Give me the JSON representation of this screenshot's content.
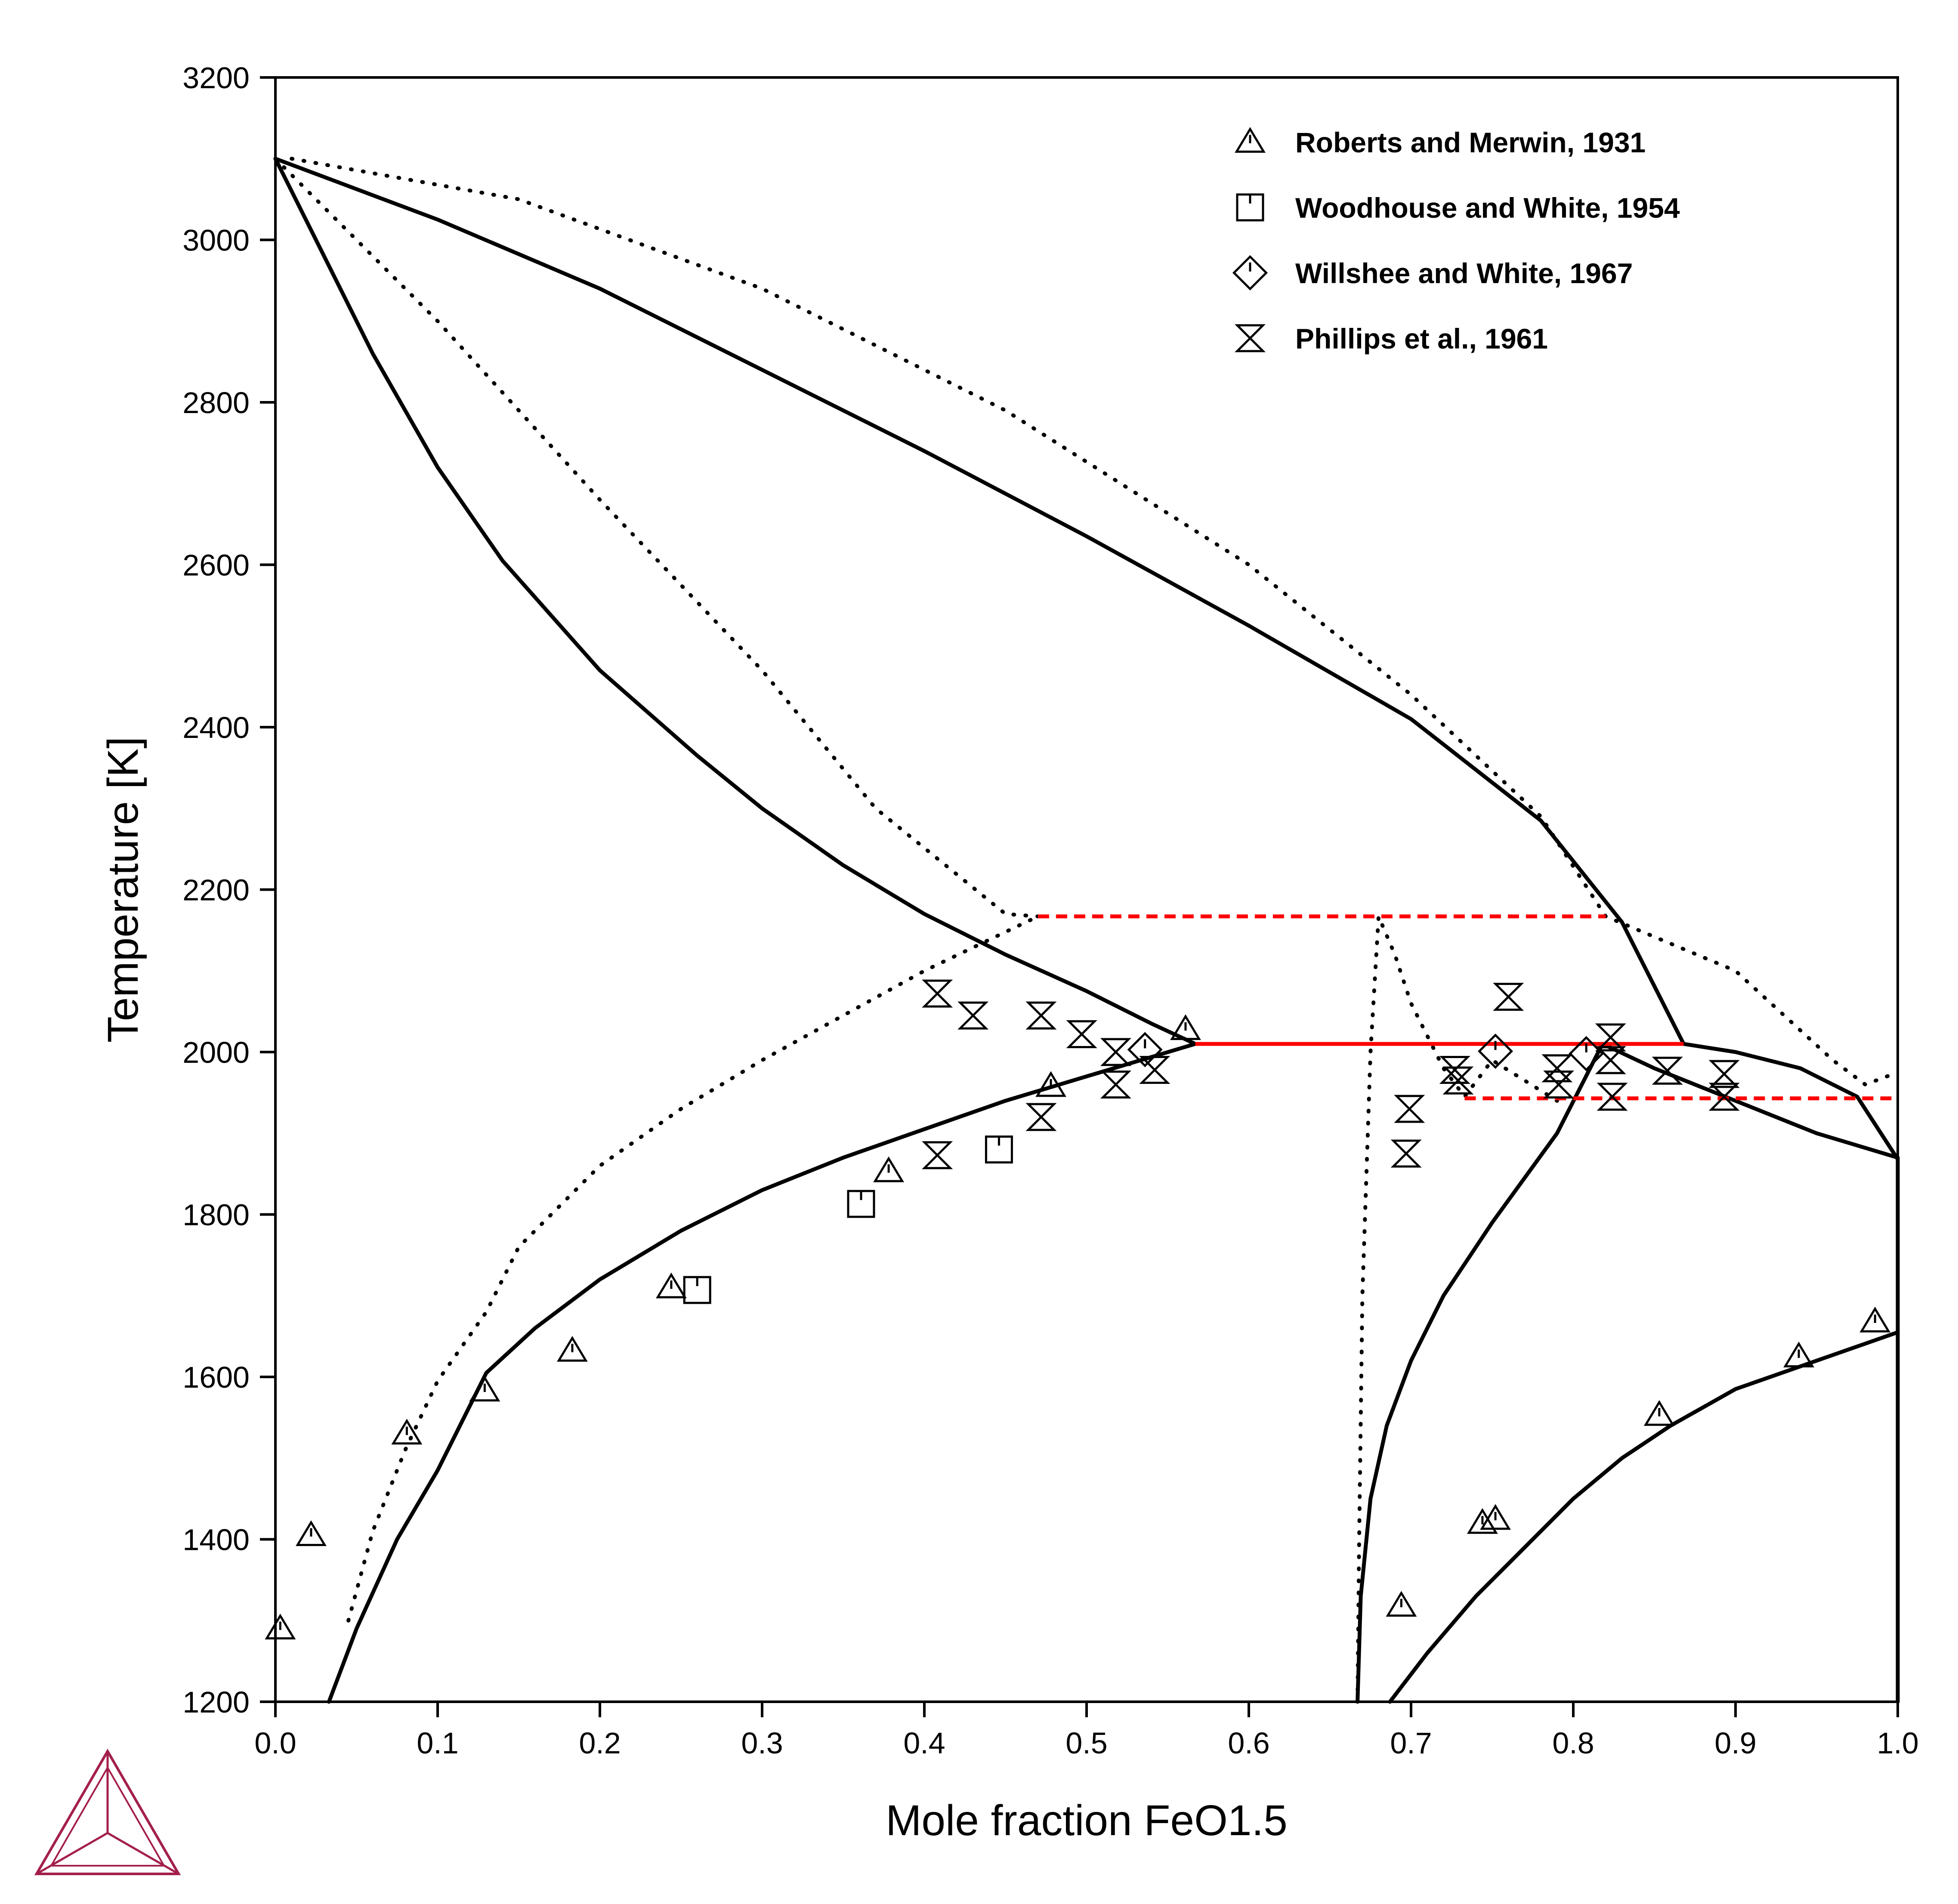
{
  "chart_data": {
    "type": "scatter",
    "xlabel": "Mole fraction FeO1.5",
    "ylabel": "Temperature [K]",
    "xlim": [
      0.0,
      1.0
    ],
    "ylim": [
      1200,
      3200
    ],
    "x_ticks": [
      "0.0",
      "0.1",
      "0.2",
      "0.3",
      "0.4",
      "0.5",
      "0.6",
      "0.7",
      "0.8",
      "0.9",
      "1.0"
    ],
    "y_ticks": [
      "1200",
      "1400",
      "1600",
      "1800",
      "2000",
      "2200",
      "2400",
      "2600",
      "2800",
      "3000",
      "3200"
    ],
    "legend_position": "top-right",
    "colors": {
      "calculated": "#000000",
      "invariant": "#ff0000",
      "logo": "#a31f4b"
    },
    "series": [
      {
        "name": "Roberts and Merwin, 1931",
        "marker": "triangle-tick",
        "points": [
          [
            0.003,
            1290
          ],
          [
            0.022,
            1405
          ],
          [
            0.081,
            1530
          ],
          [
            0.129,
            1583
          ],
          [
            0.183,
            1632
          ],
          [
            0.244,
            1710
          ],
          [
            0.378,
            1853
          ],
          [
            0.478,
            1958
          ],
          [
            0.561,
            2028
          ],
          [
            0.694,
            1318
          ],
          [
            0.744,
            1420
          ],
          [
            0.752,
            1425
          ],
          [
            0.853,
            1553
          ],
          [
            0.939,
            1625
          ],
          [
            0.986,
            1668
          ]
        ]
      },
      {
        "name": "Woodhouse and White, 1954",
        "marker": "square-tick",
        "points": [
          [
            0.26,
            1707
          ],
          [
            0.361,
            1813
          ],
          [
            0.446,
            1880
          ]
        ]
      },
      {
        "name": "Willshee and White, 1967",
        "marker": "diamond-tick",
        "points": [
          [
            0.536,
            2003
          ],
          [
            0.752,
            2001
          ],
          [
            0.808,
            1998
          ]
        ]
      },
      {
        "name": "Phillips et al., 1961",
        "marker": "hourglass",
        "points": [
          [
            0.408,
            2072
          ],
          [
            0.43,
            2045
          ],
          [
            0.472,
            2045
          ],
          [
            0.497,
            2022
          ],
          [
            0.518,
            2000
          ],
          [
            0.542,
            1978
          ],
          [
            0.518,
            1960
          ],
          [
            0.472,
            1920
          ],
          [
            0.408,
            1873
          ],
          [
            0.727,
            1978
          ],
          [
            0.729,
            1965
          ],
          [
            0.76,
            2068
          ],
          [
            0.79,
            1980
          ],
          [
            0.791,
            1960
          ],
          [
            0.823,
            2018
          ],
          [
            0.823,
            1990
          ],
          [
            0.824,
            1945
          ],
          [
            0.858,
            1977
          ],
          [
            0.893,
            1973
          ],
          [
            0.893,
            1945
          ],
          [
            0.699,
            1930
          ],
          [
            0.697,
            1875
          ]
        ]
      }
    ],
    "calculated_solid_curves": [
      [
        [
          0.0,
          3100
        ],
        [
          0.03,
          2980
        ],
        [
          0.06,
          2860
        ],
        [
          0.1,
          2720
        ],
        [
          0.14,
          2605
        ],
        [
          0.2,
          2470
        ],
        [
          0.26,
          2365
        ],
        [
          0.3,
          2300
        ],
        [
          0.35,
          2230
        ],
        [
          0.4,
          2170
        ],
        [
          0.45,
          2120
        ],
        [
          0.5,
          2075
        ],
        [
          0.54,
          2035
        ],
        [
          0.567,
          2010
        ]
      ],
      [
        [
          0.0,
          3100
        ],
        [
          0.1,
          3025
        ],
        [
          0.2,
          2940
        ],
        [
          0.3,
          2840
        ],
        [
          0.4,
          2740
        ],
        [
          0.5,
          2635
        ],
        [
          0.6,
          2525
        ],
        [
          0.7,
          2410
        ],
        [
          0.78,
          2285
        ],
        [
          0.83,
          2160
        ],
        [
          0.868,
          2010
        ],
        [
          0.9,
          2000
        ],
        [
          0.94,
          1980
        ],
        [
          0.975,
          1945
        ],
        [
          1.0,
          1868
        ]
      ],
      [
        [
          0.033,
          1200
        ],
        [
          0.05,
          1290
        ],
        [
          0.075,
          1400
        ],
        [
          0.1,
          1485
        ],
        [
          0.13,
          1605
        ],
        [
          0.16,
          1660
        ],
        [
          0.2,
          1720
        ],
        [
          0.25,
          1780
        ],
        [
          0.3,
          1830
        ],
        [
          0.35,
          1870
        ],
        [
          0.4,
          1905
        ],
        [
          0.45,
          1940
        ],
        [
          0.5,
          1970
        ],
        [
          0.567,
          2010
        ]
      ],
      [
        [
          0.667,
          1200
        ],
        [
          0.669,
          1330
        ],
        [
          0.675,
          1450
        ],
        [
          0.685,
          1540
        ],
        [
          0.7,
          1620
        ],
        [
          0.72,
          1700
        ],
        [
          0.75,
          1790
        ],
        [
          0.79,
          1900
        ],
        [
          0.818,
          2010
        ],
        [
          0.85,
          1980
        ],
        [
          0.9,
          1940
        ],
        [
          0.95,
          1900
        ],
        [
          1.0,
          1870
        ]
      ],
      [
        [
          0.687,
          1200
        ],
        [
          0.71,
          1260
        ],
        [
          0.74,
          1330
        ],
        [
          0.77,
          1390
        ],
        [
          0.8,
          1450
        ],
        [
          0.83,
          1500
        ],
        [
          0.86,
          1540
        ],
        [
          0.9,
          1585
        ],
        [
          0.95,
          1620
        ],
        [
          1.0,
          1655
        ]
      ],
      [
        [
          1.0,
          1200
        ],
        [
          1.0,
          1870
        ]
      ]
    ],
    "calculated_dotted_curves": [
      [
        [
          0.0,
          3100
        ],
        [
          0.1,
          2900
        ],
        [
          0.2,
          2680
        ],
        [
          0.3,
          2470
        ],
        [
          0.37,
          2300
        ],
        [
          0.45,
          2170
        ],
        [
          0.47,
          2167
        ]
      ],
      [
        [
          0.01,
          3100
        ],
        [
          0.15,
          3050
        ],
        [
          0.3,
          2940
        ],
        [
          0.45,
          2790
        ],
        [
          0.6,
          2600
        ],
        [
          0.7,
          2440
        ],
        [
          0.78,
          2290
        ],
        [
          0.82,
          2167
        ],
        [
          0.9,
          2100
        ],
        [
          0.96,
          1990
        ],
        [
          0.98,
          1960
        ],
        [
          1.0,
          1975
        ]
      ],
      [
        [
          0.045,
          1300
        ],
        [
          0.06,
          1410
        ],
        [
          0.08,
          1510
        ],
        [
          0.1,
          1595
        ],
        [
          0.13,
          1680
        ],
        [
          0.15,
          1760
        ],
        [
          0.2,
          1860
        ],
        [
          0.25,
          1930
        ],
        [
          0.3,
          1990
        ],
        [
          0.4,
          2100
        ],
        [
          0.47,
          2167
        ]
      ],
      [
        [
          0.667,
          1200
        ],
        [
          0.668,
          1400
        ],
        [
          0.67,
          1700
        ],
        [
          0.675,
          2000
        ],
        [
          0.68,
          2167
        ],
        [
          0.69,
          2120
        ],
        [
          0.7,
          2060
        ],
        [
          0.72,
          1980
        ],
        [
          0.733,
          1945
        ],
        [
          0.75,
          1990
        ],
        [
          0.79,
          1940
        ]
      ]
    ],
    "invariant_lines": [
      {
        "style": "dashed",
        "x": [
          0.47,
          0.82
        ],
        "T": 2167
      },
      {
        "style": "solid",
        "x": [
          0.567,
          0.868
        ],
        "T": 2010
      },
      {
        "style": "dashed",
        "x": [
          0.733,
          1.0
        ],
        "T": 1943
      }
    ]
  }
}
